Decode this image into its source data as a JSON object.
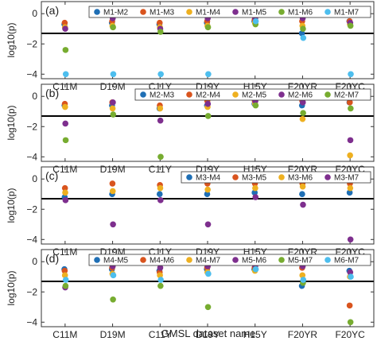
{
  "figure": {
    "xlabel": "GMSL dataset name",
    "ylabel": "log10(p)",
    "categories": [
      "C11M",
      "D19M",
      "C11Y",
      "D19Y",
      "H15Y",
      "F20YR",
      "F20YC"
    ],
    "yticks": [
      0,
      -2,
      -4
    ]
  },
  "colors": {
    "blue": "#1f6fb5",
    "orange": "#d9541e",
    "yellow": "#eeb020",
    "purple": "#7e2f8e",
    "green": "#77ac30",
    "cyan": "#4dbeee"
  },
  "chart_data": [
    {
      "type": "scatter",
      "panel_label": "(a)",
      "categories": [
        "C11M",
        "D19M",
        "C11Y",
        "D19Y",
        "H15Y",
        "F20YR",
        "F20YC"
      ],
      "ylim": [
        -4.3,
        0.8
      ],
      "ylabel": "log10(p)",
      "reference_line": -1.3,
      "legend_position": "top",
      "series": [
        {
          "name": "M1-M2",
          "color": "blue",
          "values": [
            -0.7,
            -0.6,
            -0.7,
            -0.6,
            -0.5,
            -1.3,
            -0.5
          ]
        },
        {
          "name": "M1-M3",
          "color": "orange",
          "values": [
            -0.6,
            -0.5,
            -0.6,
            -0.5,
            -0.4,
            -0.5,
            -0.5
          ]
        },
        {
          "name": "M1-M4",
          "color": "yellow",
          "values": [
            -0.9,
            -0.8,
            -0.9,
            -0.8,
            -0.6,
            -0.8,
            -0.7
          ]
        },
        {
          "name": "M1-M5",
          "color": "purple",
          "values": [
            -1.0,
            -0.3,
            -1.0,
            -0.3,
            -0.3,
            -0.3,
            -0.6
          ]
        },
        {
          "name": "M1-M6",
          "color": "green",
          "values": [
            -2.4,
            -0.9,
            -1.2,
            -0.9,
            -0.7,
            -1.0,
            -0.8
          ]
        },
        {
          "name": "M1-M7",
          "color": "cyan",
          "values": [
            -4.0,
            -4.0,
            -4.0,
            -4.0,
            -0.5,
            -1.6,
            -4.0
          ]
        }
      ]
    },
    {
      "type": "scatter",
      "panel_label": "(b)",
      "categories": [
        "C11M",
        "D19M",
        "C11Y",
        "D19Y",
        "H15Y",
        "F20YR",
        "F20YC"
      ],
      "ylim": [
        -4.3,
        0.8
      ],
      "ylabel": "log10(p)",
      "reference_line": -1.3,
      "legend_position": "top",
      "series": [
        {
          "name": "M2-M3",
          "color": "blue",
          "values": [
            -0.6,
            -0.6,
            -0.8,
            -0.6,
            -0.5,
            -0.6,
            -0.4
          ]
        },
        {
          "name": "M2-M4",
          "color": "orange",
          "values": [
            -0.5,
            -0.4,
            -0.6,
            -0.3,
            -0.3,
            -0.3,
            -0.4
          ]
        },
        {
          "name": "M2-M5",
          "color": "yellow",
          "values": [
            -0.7,
            -0.8,
            -0.8,
            -0.7,
            -0.5,
            -1.5,
            -3.9
          ]
        },
        {
          "name": "M2-M6",
          "color": "purple",
          "values": [
            -1.8,
            -0.4,
            -1.6,
            -0.5,
            -0.3,
            -0.4,
            -2.9
          ]
        },
        {
          "name": "M2-M7",
          "color": "green",
          "values": [
            -2.9,
            -1.2,
            -4.0,
            -1.3,
            -0.6,
            -1.1,
            -0.8
          ]
        }
      ]
    },
    {
      "type": "scatter",
      "panel_label": "(c)",
      "categories": [
        "C11M",
        "D19M",
        "C11Y",
        "D19Y",
        "H15Y",
        "F20YR",
        "F20YC"
      ],
      "ylim": [
        -4.3,
        0.8
      ],
      "ylabel": "log10(p)",
      "reference_line": -1.3,
      "legend_position": "top-right",
      "series": [
        {
          "name": "M3-M4",
          "color": "blue",
          "values": [
            -1.2,
            -1.0,
            -1.0,
            -1.0,
            -0.9,
            -1.0,
            -0.9
          ]
        },
        {
          "name": "M3-M5",
          "color": "orange",
          "values": [
            -0.6,
            -0.3,
            -0.4,
            -0.3,
            -0.3,
            -0.3,
            -0.3
          ]
        },
        {
          "name": "M3-M6",
          "color": "yellow",
          "values": [
            -0.9,
            -0.8,
            -0.6,
            -0.7,
            -0.6,
            -0.5,
            -0.6
          ]
        },
        {
          "name": "M3-M7",
          "color": "purple",
          "values": [
            -1.4,
            -3.0,
            -1.4,
            -3.0,
            -1.2,
            -1.7,
            -4.0
          ]
        }
      ]
    },
    {
      "type": "scatter",
      "panel_label": "(d)",
      "categories": [
        "C11M",
        "D19M",
        "C11Y",
        "D19Y",
        "H15Y",
        "F20YR",
        "F20YC"
      ],
      "ylim": [
        -4.3,
        0.8
      ],
      "ylabel": "log10(p)",
      "reference_line": -1.3,
      "legend_position": "top",
      "series": [
        {
          "name": "M4-M5",
          "color": "blue",
          "values": [
            -0.5,
            -0.5,
            -0.6,
            -0.5,
            -0.5,
            -1.6,
            -0.6
          ]
        },
        {
          "name": "M4-M6",
          "color": "orange",
          "values": [
            -0.6,
            -0.4,
            -0.7,
            -0.4,
            -0.4,
            -0.4,
            -2.9
          ]
        },
        {
          "name": "M4-M7",
          "color": "yellow",
          "values": [
            -0.9,
            -0.8,
            -0.9,
            -0.7,
            -0.6,
            -0.9,
            -1.0
          ]
        },
        {
          "name": "M5-M6",
          "color": "purple",
          "values": [
            -1.7,
            -0.3,
            -0.4,
            -0.3,
            -0.3,
            -0.3,
            -0.7
          ]
        },
        {
          "name": "M5-M7",
          "color": "green",
          "values": [
            -1.6,
            -2.5,
            -1.6,
            -3.0,
            -0.5,
            -1.4,
            -4.0
          ]
        },
        {
          "name": "M6-M7",
          "color": "cyan",
          "values": [
            -1.2,
            -0.9,
            -1.2,
            -0.8,
            -0.5,
            -1.2,
            -1.0
          ]
        }
      ]
    }
  ]
}
